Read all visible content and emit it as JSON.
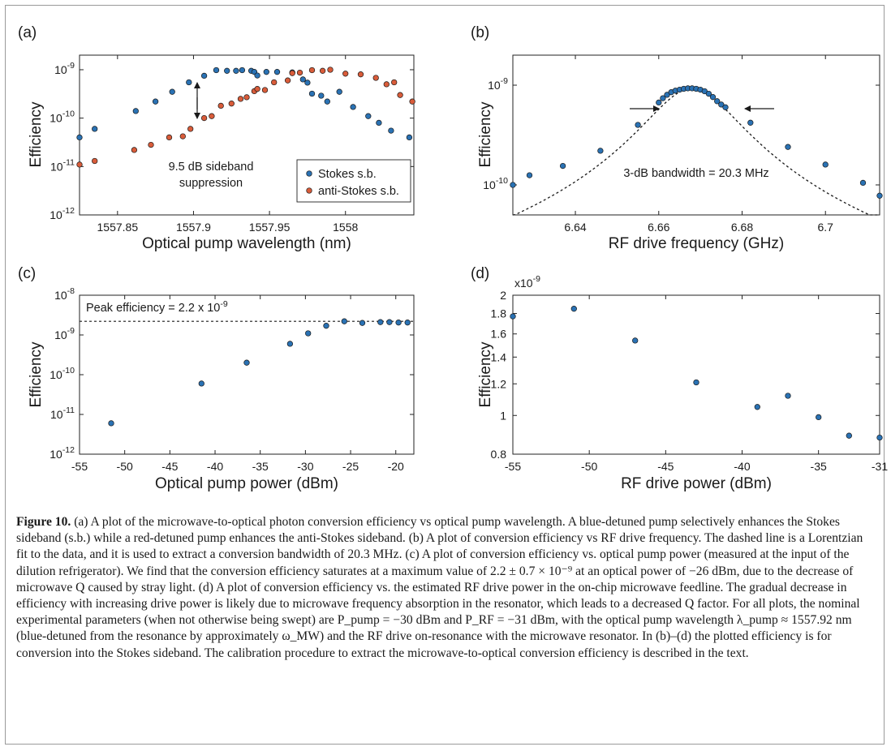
{
  "chart_data": [
    {
      "type": "scatter",
      "panel": "(a)",
      "xlabel": "Optical pump wavelength (nm)",
      "ylabel": "Efficiency",
      "xlim": [
        1557.825,
        1558.045
      ],
      "ylim": [
        1e-12,
        2e-09
      ],
      "yscale": "log",
      "xticks": [
        1557.85,
        1557.9,
        1557.95,
        1558
      ],
      "xtick_labels": [
        "1557.85",
        "1557.9",
        "1557.95",
        "1558"
      ],
      "yticks": [
        1e-12,
        1e-11,
        1e-10,
        1e-09
      ],
      "ytick_labels": [
        {
          "b": "10",
          "e": "-12"
        },
        {
          "b": "10",
          "e": "-11"
        },
        {
          "b": "10",
          "e": "-10"
        },
        {
          "b": "10",
          "e": "-9"
        }
      ],
      "legend_position": "bottom-right",
      "series": [
        {
          "name": "Stokes s.b.",
          "color": "#2a72b4",
          "x": [
            1557.825,
            1557.835,
            1557.862,
            1557.875,
            1557.886,
            1557.897,
            1557.907,
            1557.915,
            1557.922,
            1557.928,
            1557.932,
            1557.938,
            1557.94,
            1557.942,
            1557.948,
            1557.955,
            1557.965,
            1557.972,
            1557.975,
            1557.978,
            1557.984,
            1557.988,
            1557.996,
            1558.005,
            1558.015,
            1558.022,
            1558.03,
            1558.042
          ],
          "y": [
            4e-11,
            6e-11,
            1.4e-10,
            2.2e-10,
            3.5e-10,
            5.5e-10,
            7.5e-10,
            9.8e-10,
            9.5e-10,
            9.5e-10,
            9.8e-10,
            9.5e-10,
            9e-10,
            7.6e-10,
            9e-10,
            9e-10,
            8.8e-10,
            6.3e-10,
            5.4e-10,
            3.2e-10,
            2.9e-10,
            2.2e-10,
            3.5e-10,
            1.7e-10,
            1.1e-10,
            8e-11,
            5.5e-11,
            4e-11
          ]
        },
        {
          "name": "anti-Stokes s.b.",
          "color": "#d95c3a",
          "x": [
            1557.825,
            1557.835,
            1557.861,
            1557.872,
            1557.884,
            1557.893,
            1557.898,
            1557.907,
            1557.912,
            1557.918,
            1557.925,
            1557.931,
            1557.935,
            1557.94,
            1557.942,
            1557.947,
            1557.953,
            1557.962,
            1557.965,
            1557.97,
            1557.978,
            1557.985,
            1557.99,
            1558.0,
            1558.01,
            1558.02,
            1558.027,
            1558.032,
            1558.036,
            1558.044
          ],
          "y": [
            1.1e-11,
            1.3e-11,
            2.2e-11,
            2.8e-11,
            4e-11,
            4.2e-11,
            6e-11,
            1e-10,
            1.1e-10,
            1.8e-10,
            2e-10,
            2.5e-10,
            2.7e-10,
            3.6e-10,
            4e-10,
            3.8e-10,
            5.5e-10,
            6e-10,
            8.5e-10,
            8.7e-10,
            9.8e-10,
            9.5e-10,
            1e-09,
            8.3e-10,
            8e-10,
            6.8e-10,
            5e-10,
            5.5e-10,
            3e-10,
            2.2e-10
          ]
        }
      ],
      "annotations": [
        "9.5 dB sideband",
        "suppression"
      ]
    },
    {
      "type": "scatter",
      "panel": "(b)",
      "xlabel": "RF drive frequency (GHz)",
      "ylabel": "Efficiency",
      "xlim": [
        6.625,
        6.713
      ],
      "ylim": [
        5e-11,
        2e-09
      ],
      "yscale": "log",
      "xticks": [
        6.64,
        6.66,
        6.68,
        6.7
      ],
      "xtick_labels": [
        "6.64",
        "6.66",
        "6.68",
        "6.7"
      ],
      "yticks": [
        1e-10,
        1e-09
      ],
      "ytick_labels": [
        {
          "b": "10",
          "e": "-10"
        },
        {
          "b": "10",
          "e": "-9"
        }
      ],
      "series": [
        {
          "name": "",
          "color": "#2a72b4",
          "x": [
            6.625,
            6.629,
            6.637,
            6.646,
            6.655,
            6.66,
            6.661,
            6.662,
            6.663,
            6.664,
            6.665,
            6.666,
            6.667,
            6.668,
            6.669,
            6.67,
            6.671,
            6.672,
            6.673,
            6.674,
            6.675,
            6.676,
            6.682,
            6.691,
            6.7,
            6.709,
            6.713
          ],
          "y": [
            1e-10,
            1.25e-10,
            1.55e-10,
            2.2e-10,
            4e-10,
            6.7e-10,
            7.4e-10,
            8e-10,
            8.5e-10,
            8.8e-10,
            9e-10,
            9.2e-10,
            9.3e-10,
            9.3e-10,
            9.2e-10,
            9e-10,
            8.7e-10,
            8.2e-10,
            7.6e-10,
            6.9e-10,
            6.4e-10,
            6e-10,
            4.2e-10,
            2.4e-10,
            1.6e-10,
            1.05e-10,
            7.8e-11
          ]
        }
      ],
      "fit": {
        "type": "lorentzian",
        "center": 6.668,
        "fwhm": 0.0203,
        "peak": 9.3e-10
      },
      "annotations": [
        "3-dB bandwidth = 20.3 MHz"
      ]
    },
    {
      "type": "scatter",
      "panel": "(c)",
      "xlabel": "Optical pump power (dBm)",
      "ylabel": "Efficiency",
      "xlim": [
        -55,
        -18
      ],
      "ylim": [
        1e-12,
        1e-08
      ],
      "yscale": "log",
      "xticks": [
        -55,
        -50,
        -45,
        -40,
        -35,
        -30,
        -25,
        -20
      ],
      "xtick_labels": [
        "-55",
        "-50",
        "-45",
        "-40",
        "-35",
        "-30",
        "-25",
        "-20"
      ],
      "yticks": [
        1e-12,
        1e-11,
        1e-10,
        1e-09,
        1e-08
      ],
      "ytick_labels": [
        {
          "b": "10",
          "e": "-12"
        },
        {
          "b": "10",
          "e": "-11"
        },
        {
          "b": "10",
          "e": "-10"
        },
        {
          "b": "10",
          "e": "-9"
        },
        {
          "b": "10",
          "e": "-8"
        }
      ],
      "series": [
        {
          "name": "",
          "color": "#2a72b4",
          "x": [
            -51.5,
            -41.5,
            -36.5,
            -31.7,
            -29.7,
            -27.7,
            -25.7,
            -23.7,
            -21.7,
            -20.7,
            -19.7,
            -18.7
          ],
          "y": [
            6e-12,
            6e-11,
            2e-10,
            6e-10,
            1.1e-09,
            1.7e-09,
            2.2e-09,
            2e-09,
            2.1e-09,
            2.1e-09,
            2.05e-09,
            2.05e-09
          ]
        }
      ],
      "reference_line": {
        "y": 2.2e-09,
        "style": "dashed"
      },
      "annotations": [
        {
          "text": "Peak efficiency = 2.2 x 10",
          "sup": "-9"
        }
      ]
    },
    {
      "type": "scatter",
      "panel": "(d)",
      "xlabel": "RF drive power (dBm)",
      "ylabel": "Efficiency",
      "xlim": [
        -55,
        -31
      ],
      "ylim": [
        8e-10,
        2e-09
      ],
      "yscale": "log",
      "y_multiplier": {
        "b": "x10",
        "e": "-9"
      },
      "xticks": [
        -55,
        -50,
        -45,
        -40,
        -35,
        -31
      ],
      "xtick_labels": [
        "-55",
        "-50",
        "-45",
        "-40",
        "-35",
        "-31"
      ],
      "yticks": [
        8e-10,
        1e-09,
        1.2e-09,
        1.4e-09,
        1.6e-09,
        1.8e-09,
        2e-09
      ],
      "ytick_labels": [
        "0.8",
        "1",
        "1.2",
        "1.4",
        "1.6",
        "1.8",
        "2"
      ],
      "series": [
        {
          "name": "",
          "color": "#2a72b4",
          "x": [
            -55,
            -51,
            -47,
            -43,
            -39,
            -37,
            -35,
            -33,
            -31
          ],
          "y": [
            1.77e-09,
            1.85e-09,
            1.54e-09,
            1.21e-09,
            1.05e-09,
            1.12e-09,
            9.9e-10,
            8.9e-10,
            8.8e-10
          ]
        }
      ]
    }
  ],
  "caption": {
    "label": "Figure 10.",
    "text": "(a) A plot of the microwave-to-optical photon conversion efficiency vs optical pump wavelength. A blue-detuned pump selectively enhances the Stokes sideband (s.b.) while a red-detuned pump enhances the anti-Stokes sideband. (b) A plot of conversion efficiency vs RF drive frequency. The dashed line is a Lorentzian fit to the data, and it is used to extract a conversion bandwidth of 20.3 MHz. (c) A plot of conversion efficiency vs. optical pump power (measured at the input of the dilution refrigerator). We find that the conversion efficiency saturates at a maximum value of 2.2 ± 0.7 × 10⁻⁹ at an optical power of −26 dBm, due to the decrease of microwave Q caused by stray light. (d) A plot of conversion efficiency vs. the estimated RF drive power in the on-chip microwave feedline. The gradual decrease in efficiency with increasing drive power is likely due to microwave frequency absorption in the resonator, which leads to a decreased Q factor. For all plots, the nominal experimental parameters (when not otherwise being swept) are P_pump = −30 dBm and P_RF = −31 dBm, with the optical pump wavelength λ_pump ≈ 1557.92 nm (blue-detuned from the resonance by approximately ω_MW) and the RF drive on-resonance with the microwave resonator. In (b)–(d) the plotted efficiency is for conversion into the Stokes sideband. The calibration procedure to extract the microwave-to-optical conversion efficiency is described in the text."
  }
}
